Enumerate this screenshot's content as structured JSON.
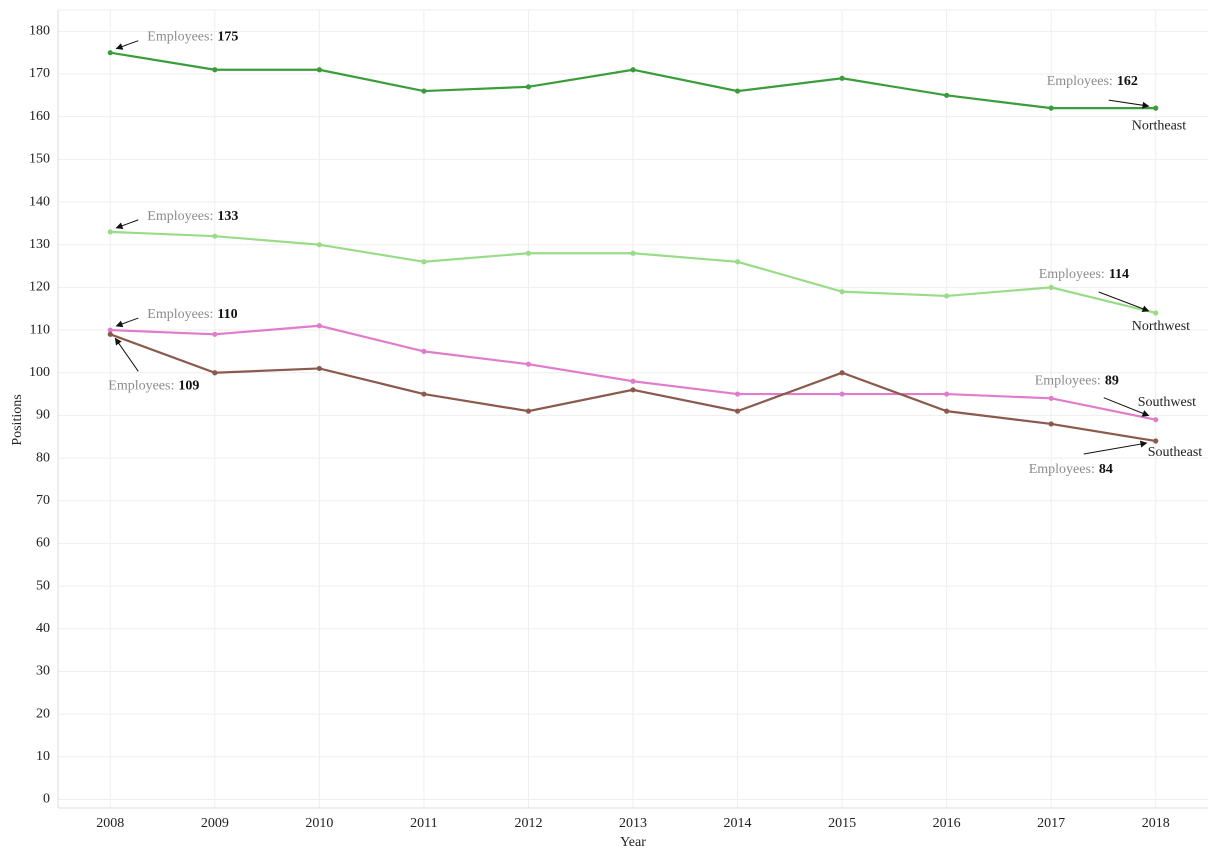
{
  "chart_data": {
    "type": "line",
    "x_label": "Year",
    "y_label": "Positions",
    "annotation_label": "Employees:",
    "x": [
      2008,
      2009,
      2010,
      2011,
      2012,
      2013,
      2014,
      2015,
      2016,
      2017,
      2018
    ],
    "xlim": [
      2007.5,
      2018.5
    ],
    "xticks": [
      2008,
      2009,
      2010,
      2011,
      2012,
      2013,
      2014,
      2015,
      2016,
      2017,
      2018
    ],
    "ylim": [
      -2,
      185
    ],
    "yticks": [
      0,
      10,
      20,
      30,
      40,
      50,
      60,
      70,
      80,
      90,
      100,
      110,
      120,
      130,
      140,
      150,
      160,
      170,
      180
    ],
    "grid": true,
    "series": [
      {
        "name": "Northeast",
        "color": "#3a9d3a",
        "values": [
          175,
          171,
          171,
          166,
          167,
          171,
          166,
          169,
          165,
          162,
          162
        ]
      },
      {
        "name": "Northwest",
        "color": "#98dc88",
        "values": [
          133,
          132,
          130,
          126,
          128,
          128,
          126,
          119,
          118,
          120,
          114
        ]
      },
      {
        "name": "Southwest",
        "color": "#e07ccb",
        "values": [
          110,
          109,
          111,
          105,
          102,
          98,
          95,
          95,
          95,
          94,
          89
        ]
      },
      {
        "name": "Southeast",
        "color": "#8c5a4c",
        "values": [
          109,
          100,
          101,
          95,
          91,
          96,
          91,
          100,
          91,
          88,
          84
        ]
      }
    ]
  }
}
